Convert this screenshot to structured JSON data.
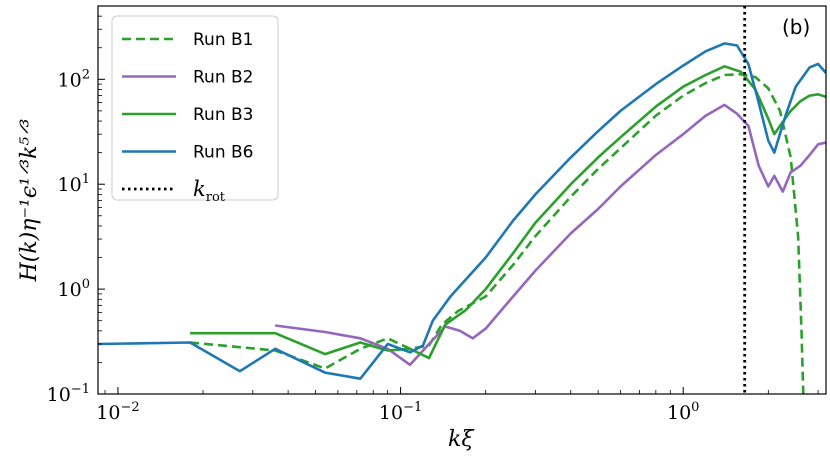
{
  "chart_data": {
    "type": "line",
    "x_scale": "log",
    "y_scale": "log",
    "xlim": [
      0.0085,
      3.2
    ],
    "ylim": [
      0.1,
      500
    ],
    "xlabel_main": "k",
    "xlabel_sub": "ξ",
    "ylabel": "H(k)η⁻¹ϵ¹ᐟ³k⁵ᐟ³",
    "panel_label": "(b)",
    "x_ticks": [
      {
        "value": 0.01,
        "base": "10",
        "exp": "−2"
      },
      {
        "value": 0.1,
        "base": "10",
        "exp": "−1"
      },
      {
        "value": 1,
        "base": "10",
        "exp": "0"
      }
    ],
    "y_ticks": [
      {
        "value": 0.1,
        "base": "10",
        "exp": "−1"
      },
      {
        "value": 1,
        "base": "10",
        "exp": "0"
      },
      {
        "value": 10,
        "base": "10",
        "exp": "1"
      },
      {
        "value": 100,
        "base": "10",
        "exp": "2"
      }
    ],
    "legend_position": "top-left",
    "series": [
      {
        "name": "Run B1",
        "color": "#2ca02c",
        "dash": "9,5",
        "points": [
          [
            0.018,
            0.31
          ],
          [
            0.036,
            0.26
          ],
          [
            0.054,
            0.175
          ],
          [
            0.072,
            0.27
          ],
          [
            0.09,
            0.34
          ],
          [
            0.108,
            0.27
          ],
          [
            0.126,
            0.29
          ],
          [
            0.14,
            0.46
          ],
          [
            0.16,
            0.62
          ],
          [
            0.2,
            0.85
          ],
          [
            0.25,
            1.7
          ],
          [
            0.3,
            3.2
          ],
          [
            0.4,
            7.6
          ],
          [
            0.5,
            14
          ],
          [
            0.6,
            22
          ],
          [
            0.8,
            45
          ],
          [
            1.0,
            70
          ],
          [
            1.2,
            92
          ],
          [
            1.4,
            110
          ],
          [
            1.6,
            112
          ],
          [
            1.8,
            105
          ],
          [
            2.0,
            82
          ],
          [
            2.2,
            50
          ],
          [
            2.4,
            18
          ],
          [
            2.55,
            3.2
          ],
          [
            2.62,
            0.4
          ],
          [
            2.66,
            0.1
          ]
        ]
      },
      {
        "name": "Run B2",
        "color": "#9467bd",
        "dash": "",
        "points": [
          [
            0.036,
            0.45
          ],
          [
            0.054,
            0.39
          ],
          [
            0.072,
            0.34
          ],
          [
            0.09,
            0.27
          ],
          [
            0.108,
            0.19
          ],
          [
            0.126,
            0.3
          ],
          [
            0.144,
            0.44
          ],
          [
            0.162,
            0.4
          ],
          [
            0.18,
            0.34
          ],
          [
            0.2,
            0.42
          ],
          [
            0.25,
            0.85
          ],
          [
            0.3,
            1.5
          ],
          [
            0.4,
            3.4
          ],
          [
            0.5,
            5.8
          ],
          [
            0.6,
            9.5
          ],
          [
            0.8,
            19
          ],
          [
            1.0,
            30
          ],
          [
            1.2,
            45
          ],
          [
            1.4,
            57
          ],
          [
            1.55,
            47
          ],
          [
            1.7,
            36
          ],
          [
            1.85,
            15
          ],
          [
            2.0,
            9.5
          ],
          [
            2.1,
            12
          ],
          [
            2.25,
            8.5
          ],
          [
            2.4,
            13
          ],
          [
            2.6,
            15
          ],
          [
            2.8,
            19
          ],
          [
            3.0,
            24
          ],
          [
            3.2,
            25
          ]
        ]
      },
      {
        "name": "Run B3",
        "color": "#2ca02c",
        "dash": "",
        "points": [
          [
            0.018,
            0.38
          ],
          [
            0.036,
            0.38
          ],
          [
            0.054,
            0.24
          ],
          [
            0.072,
            0.31
          ],
          [
            0.09,
            0.26
          ],
          [
            0.108,
            0.27
          ],
          [
            0.126,
            0.22
          ],
          [
            0.144,
            0.46
          ],
          [
            0.17,
            0.63
          ],
          [
            0.2,
            1.0
          ],
          [
            0.25,
            2.2
          ],
          [
            0.3,
            4.3
          ],
          [
            0.4,
            10
          ],
          [
            0.5,
            18
          ],
          [
            0.6,
            28
          ],
          [
            0.8,
            55
          ],
          [
            1.0,
            85
          ],
          [
            1.2,
            110
          ],
          [
            1.4,
            133
          ],
          [
            1.6,
            118
          ],
          [
            1.8,
            80
          ],
          [
            2.0,
            42
          ],
          [
            2.1,
            30
          ],
          [
            2.2,
            36
          ],
          [
            2.4,
            50
          ],
          [
            2.6,
            62
          ],
          [
            2.8,
            70
          ],
          [
            3.0,
            72
          ],
          [
            3.2,
            68
          ]
        ]
      },
      {
        "name": "Run B6",
        "color": "#1f77b4",
        "dash": "",
        "points": [
          [
            0.0085,
            0.3
          ],
          [
            0.018,
            0.31
          ],
          [
            0.027,
            0.165
          ],
          [
            0.036,
            0.27
          ],
          [
            0.054,
            0.16
          ],
          [
            0.072,
            0.14
          ],
          [
            0.09,
            0.3
          ],
          [
            0.108,
            0.25
          ],
          [
            0.12,
            0.29
          ],
          [
            0.13,
            0.5
          ],
          [
            0.15,
            0.85
          ],
          [
            0.2,
            2.0
          ],
          [
            0.25,
            4.5
          ],
          [
            0.3,
            8.0
          ],
          [
            0.4,
            18
          ],
          [
            0.5,
            32
          ],
          [
            0.6,
            50
          ],
          [
            0.8,
            90
          ],
          [
            1.0,
            135
          ],
          [
            1.2,
            185
          ],
          [
            1.4,
            220
          ],
          [
            1.55,
            210
          ],
          [
            1.7,
            140
          ],
          [
            1.85,
            60
          ],
          [
            2.0,
            26
          ],
          [
            2.1,
            20
          ],
          [
            2.3,
            45
          ],
          [
            2.5,
            85
          ],
          [
            2.8,
            130
          ],
          [
            3.0,
            140
          ],
          [
            3.2,
            115
          ]
        ]
      }
    ],
    "reference_line": {
      "name": "k",
      "name_sub": "rot",
      "x": 1.65,
      "color": "#000000",
      "dash": "2.5,3.5"
    }
  }
}
